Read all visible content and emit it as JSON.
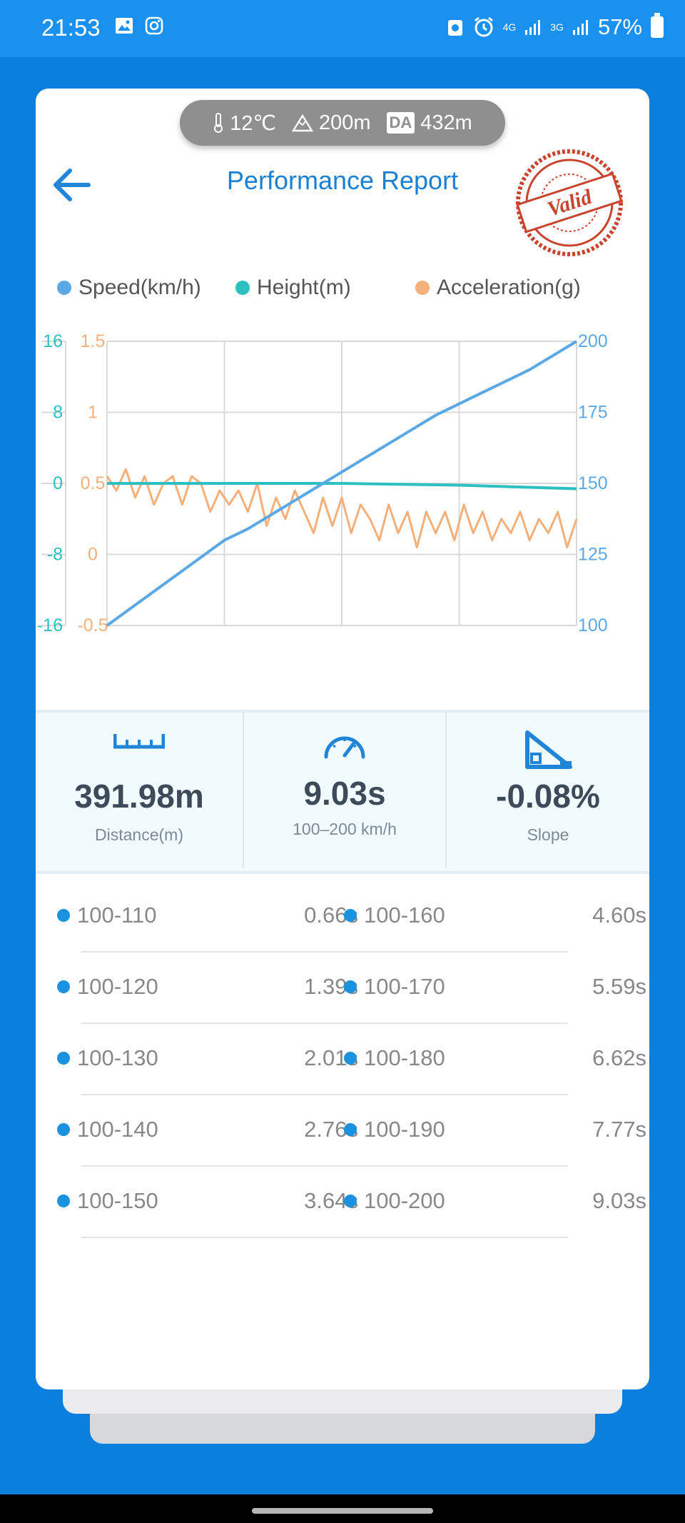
{
  "status_bar": {
    "time": "21:53",
    "battery": "57%",
    "net1": "4G",
    "net2": "3G"
  },
  "env": {
    "temperature": "12℃",
    "altitude": "200m",
    "da_label": "DA",
    "density_altitude": "432m"
  },
  "header": {
    "title": "Performance Report",
    "stamp_text": "Valid"
  },
  "legend": [
    {
      "label": "Speed(km/h)",
      "color": "#5ba8e6"
    },
    {
      "label": "Height(m)",
      "color": "#2ec0c0"
    },
    {
      "label": "Acceleration(g)",
      "color": "#f5b07a"
    }
  ],
  "chart_data": {
    "type": "line",
    "height_axis_ticks": [
      "16",
      "8",
      "0",
      "-8",
      "-16"
    ],
    "accel_axis_ticks": [
      "1.5",
      "1",
      "0.5",
      "0",
      "-0.5"
    ],
    "speed_axis_ticks": [
      "200",
      "175",
      "150",
      "125",
      "100"
    ],
    "speed_range": [
      100,
      200
    ],
    "height_range": [
      -16,
      16
    ],
    "accel_range": [
      -0.5,
      1.5
    ],
    "series": [
      {
        "name": "Speed(km/h)",
        "color": "#5ba8e6",
        "x": [
          0,
          0.05,
          0.1,
          0.15,
          0.2,
          0.25,
          0.3,
          0.35,
          0.4,
          0.45,
          0.5,
          0.55,
          0.6,
          0.65,
          0.7,
          0.75,
          0.8,
          0.85,
          0.9,
          0.95,
          1.0
        ],
        "values": [
          100,
          106,
          112,
          118,
          124,
          130,
          134,
          139,
          144,
          149,
          154,
          159,
          164,
          169,
          174,
          178,
          182,
          186,
          190,
          195,
          200
        ]
      },
      {
        "name": "Height(m)",
        "color": "#2ec0c0",
        "x": [
          0,
          0.25,
          0.5,
          0.75,
          1.0
        ],
        "values": [
          0,
          0,
          0,
          -0.2,
          -0.6
        ]
      },
      {
        "name": "Acceleration(g)",
        "color": "#f5b07a",
        "x": [
          0,
          0.02,
          0.04,
          0.06,
          0.08,
          0.1,
          0.12,
          0.14,
          0.16,
          0.18,
          0.2,
          0.22,
          0.24,
          0.26,
          0.28,
          0.3,
          0.32,
          0.34,
          0.36,
          0.38,
          0.4,
          0.42,
          0.44,
          0.46,
          0.48,
          0.5,
          0.52,
          0.54,
          0.56,
          0.58,
          0.6,
          0.62,
          0.64,
          0.66,
          0.68,
          0.7,
          0.72,
          0.74,
          0.76,
          0.78,
          0.8,
          0.82,
          0.84,
          0.86,
          0.88,
          0.9,
          0.92,
          0.94,
          0.96,
          0.98,
          1.0
        ],
        "values": [
          0.55,
          0.45,
          0.6,
          0.4,
          0.55,
          0.35,
          0.5,
          0.55,
          0.35,
          0.55,
          0.5,
          0.3,
          0.45,
          0.35,
          0.45,
          0.3,
          0.5,
          0.2,
          0.4,
          0.25,
          0.45,
          0.3,
          0.15,
          0.4,
          0.2,
          0.4,
          0.15,
          0.35,
          0.25,
          0.1,
          0.35,
          0.15,
          0.3,
          0.05,
          0.3,
          0.15,
          0.3,
          0.1,
          0.35,
          0.15,
          0.3,
          0.1,
          0.25,
          0.15,
          0.3,
          0.1,
          0.25,
          0.15,
          0.3,
          0.05,
          0.25
        ]
      }
    ]
  },
  "summary": [
    {
      "value": "391.98m",
      "label": "Distance(m)",
      "icon": "ruler-icon"
    },
    {
      "value": "9.03s",
      "label": "100–200 km/h",
      "icon": "speedometer-icon"
    },
    {
      "value": "-0.08%",
      "label": "Slope",
      "icon": "slope-icon"
    }
  ],
  "splits": [
    {
      "left_range": "100-110",
      "left_time": "0.66s",
      "right_range": "100-160",
      "right_time": "4.60s"
    },
    {
      "left_range": "100-120",
      "left_time": "1.39s",
      "right_range": "100-170",
      "right_time": "5.59s"
    },
    {
      "left_range": "100-130",
      "left_time": "2.01s",
      "right_range": "100-180",
      "right_time": "6.62s"
    },
    {
      "left_range": "100-140",
      "left_time": "2.76s",
      "right_range": "100-190",
      "right_time": "7.77s"
    },
    {
      "left_range": "100-150",
      "left_time": "3.64s",
      "right_range": "100-200",
      "right_time": "9.03s"
    }
  ]
}
